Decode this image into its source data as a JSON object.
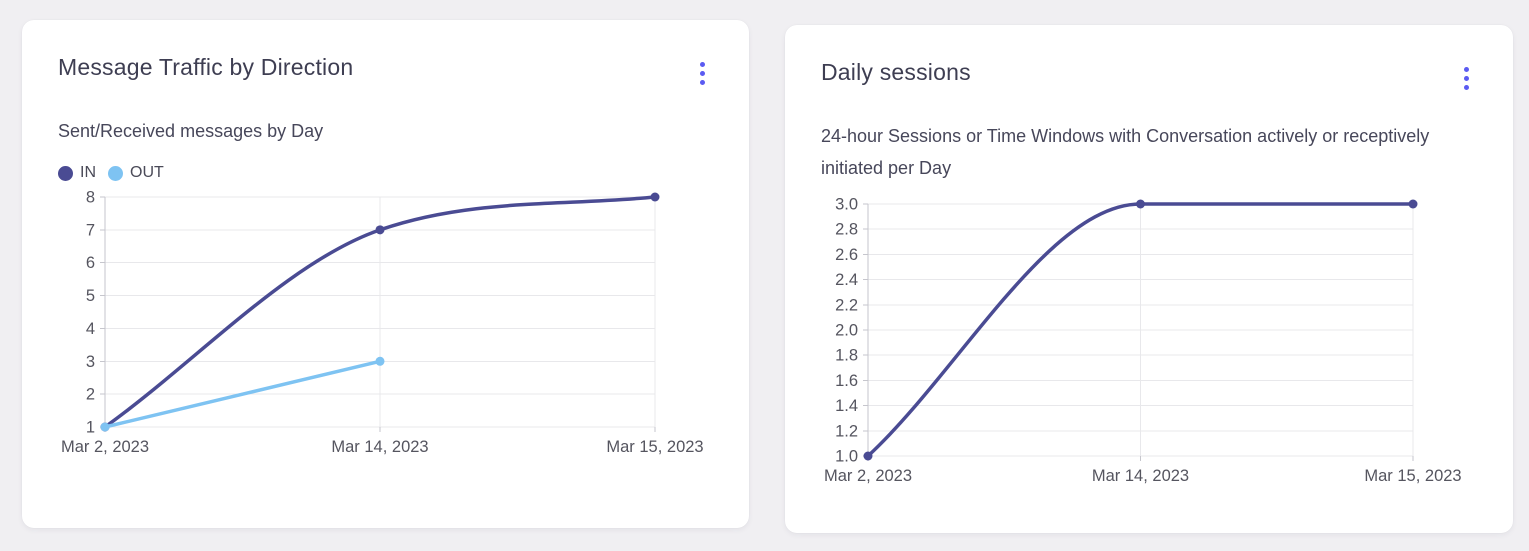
{
  "colors": {
    "accent": "#5b5bf2",
    "page_background": "#f0eff2",
    "grid": "#e8e8eb",
    "axis": "#c6c6cd",
    "tick_text": "#55555f",
    "series_in": "#4a4b93",
    "series_out": "#7ec3f2",
    "series_sessions": "#4a4b93"
  },
  "cards": [
    {
      "menu_icon": "kebab-menu-icon"
    },
    {
      "menu_icon": "kebab-menu-icon"
    }
  ],
  "chart_data": [
    {
      "type": "line",
      "title": "Message Traffic by Direction",
      "subtitle": "Sent/Received messages by Day",
      "categories": [
        "Mar 2, 2023",
        "Mar 14, 2023",
        "Mar 15, 2023"
      ],
      "series": [
        {
          "name": "IN",
          "color": "#4a4b93",
          "values": [
            1,
            7,
            8
          ]
        },
        {
          "name": "OUT",
          "color": "#7ec3f2",
          "values": [
            1,
            3,
            null
          ]
        }
      ],
      "xlabel": "",
      "ylabel": "",
      "ylim": [
        1,
        8
      ],
      "ytick_step": 1,
      "ytick_decimals": 0,
      "grid": true,
      "legend": true,
      "legend_position": "top-left",
      "curve": "monotone"
    },
    {
      "type": "line",
      "title": "Daily sessions",
      "subtitle": "24-hour Sessions or Time Windows with Conversation actively or receptively initiated per Day",
      "categories": [
        "Mar 2, 2023",
        "Mar 14, 2023",
        "Mar 15, 2023"
      ],
      "series": [
        {
          "color": "#4a4b93",
          "values": [
            1,
            3,
            3
          ]
        }
      ],
      "xlabel": "",
      "ylabel": "",
      "ylim": [
        1,
        3
      ],
      "ytick_step": 0.2,
      "ytick_decimals": 1,
      "grid": true,
      "legend": false,
      "curve": "monotone"
    }
  ]
}
